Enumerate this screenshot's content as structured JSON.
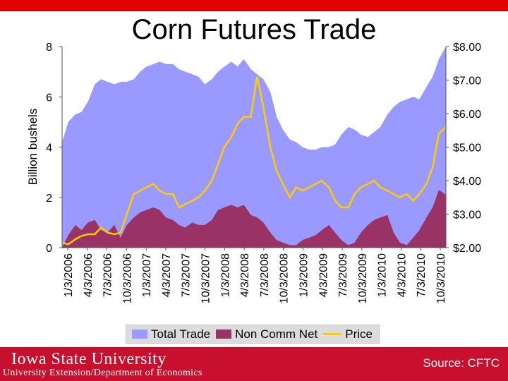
{
  "title": "Corn Futures Trade",
  "footer": {
    "logo_text": "Iowa State University",
    "subtitle": "University Extension/Department of Economics",
    "source": "Source: CFTC"
  },
  "chart_data": {
    "type": "area",
    "title": "Corn Futures Trade",
    "ylabel": "Billion bushels",
    "y2label": "",
    "ylim": [
      0,
      8
    ],
    "y2lim": [
      2.0,
      8.0
    ],
    "yticks": [
      "0",
      "2",
      "4",
      "6",
      "8"
    ],
    "y2ticks": [
      "$2.00",
      "$3.00",
      "$4.00",
      "$5.00",
      "$6.00",
      "$7.00",
      "$8.00"
    ],
    "xticks": [
      "1/3/2006",
      "4/3/2006",
      "7/3/2006",
      "10/3/2006",
      "1/3/2007",
      "4/3/2007",
      "7/3/2007",
      "10/3/2007",
      "1/3/2008",
      "4/3/2008",
      "7/3/2008",
      "10/3/2008",
      "1/3/2009",
      "4/3/2009",
      "7/3/2009",
      "10/3/2009",
      "1/3/2010",
      "4/3/2010",
      "7/3/2010",
      "10/3/2010"
    ],
    "x": [
      2006.0,
      2006.08,
      2006.17,
      2006.25,
      2006.33,
      2006.42,
      2006.5,
      2006.58,
      2006.67,
      2006.75,
      2006.83,
      2006.92,
      2007.0,
      2007.08,
      2007.17,
      2007.25,
      2007.33,
      2007.42,
      2007.5,
      2007.58,
      2007.67,
      2007.75,
      2007.83,
      2007.92,
      2008.0,
      2008.08,
      2008.17,
      2008.25,
      2008.33,
      2008.42,
      2008.5,
      2008.58,
      2008.67,
      2008.75,
      2008.83,
      2008.92,
      2009.0,
      2009.08,
      2009.17,
      2009.25,
      2009.33,
      2009.42,
      2009.5,
      2009.58,
      2009.67,
      2009.75,
      2009.83,
      2009.92,
      2010.0,
      2010.08,
      2010.17,
      2010.25,
      2010.33,
      2010.42,
      2010.5,
      2010.58,
      2010.67,
      2010.75,
      2010.83,
      2010.92
    ],
    "series": [
      {
        "name": "Total Trade",
        "axis": "left",
        "color": "#9999ff",
        "values": [
          4.2,
          5.0,
          5.3,
          5.4,
          5.8,
          6.5,
          6.7,
          6.6,
          6.5,
          6.6,
          6.6,
          6.7,
          7.0,
          7.2,
          7.3,
          7.4,
          7.3,
          7.3,
          7.1,
          7.0,
          6.9,
          6.8,
          6.5,
          6.7,
          7.0,
          7.2,
          7.4,
          7.2,
          7.5,
          7.1,
          6.9,
          6.7,
          6.2,
          5.2,
          4.7,
          4.3,
          4.2,
          4.0,
          3.9,
          3.9,
          4.0,
          4.0,
          4.1,
          4.5,
          4.8,
          4.7,
          4.5,
          4.4,
          4.6,
          4.8,
          5.3,
          5.6,
          5.8,
          5.9,
          6.0,
          5.9,
          6.4,
          6.8,
          7.5,
          8.0
        ]
      },
      {
        "name": "Non Comm Net",
        "axis": "left",
        "color": "#993366",
        "values": [
          0.0,
          0.5,
          0.9,
          0.7,
          1.0,
          1.1,
          0.7,
          0.6,
          0.9,
          0.4,
          0.9,
          1.2,
          1.4,
          1.5,
          1.6,
          1.5,
          1.2,
          1.1,
          0.9,
          0.8,
          1.0,
          0.9,
          0.9,
          1.1,
          1.5,
          1.6,
          1.7,
          1.6,
          1.7,
          1.3,
          1.2,
          1.0,
          0.6,
          0.3,
          0.2,
          0.1,
          0.1,
          0.3,
          0.4,
          0.5,
          0.7,
          0.9,
          0.6,
          0.3,
          0.1,
          0.2,
          0.6,
          0.9,
          1.1,
          1.2,
          1.3,
          0.6,
          0.2,
          0.1,
          0.4,
          0.7,
          1.2,
          1.6,
          2.3,
          2.1
        ]
      },
      {
        "name": "Price",
        "axis": "right",
        "color": "#ffcc00",
        "values": [
          2.15,
          2.1,
          2.25,
          2.35,
          2.4,
          2.4,
          2.6,
          2.45,
          2.4,
          2.45,
          3.0,
          3.6,
          3.7,
          3.8,
          3.9,
          3.7,
          3.6,
          3.6,
          3.2,
          3.3,
          3.4,
          3.5,
          3.7,
          4.0,
          4.5,
          5.0,
          5.3,
          5.7,
          5.9,
          5.9,
          7.1,
          6.2,
          5.0,
          4.3,
          3.9,
          3.5,
          3.8,
          3.7,
          3.8,
          3.9,
          4.0,
          3.8,
          3.4,
          3.2,
          3.2,
          3.6,
          3.8,
          3.9,
          4.0,
          3.8,
          3.7,
          3.6,
          3.5,
          3.6,
          3.4,
          3.6,
          3.9,
          4.4,
          5.4,
          5.6
        ]
      }
    ],
    "legend": "bottom",
    "grid": false
  }
}
